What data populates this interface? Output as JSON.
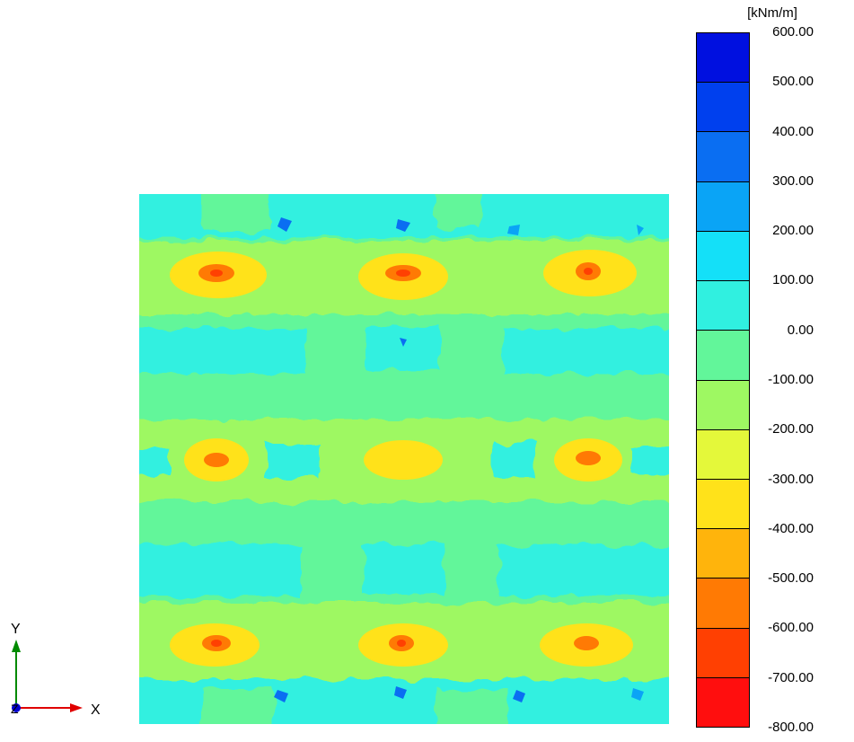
{
  "legend": {
    "unit": "[kNm/m]",
    "labels": [
      "600.00",
      "500.00",
      "400.00",
      "300.00",
      "200.00",
      "100.00",
      "0.00",
      "-100.00",
      "-200.00",
      "-300.00",
      "-400.00",
      "-500.00",
      "-600.00",
      "-700.00",
      "-800.00"
    ],
    "band_colors": [
      "#0010e0",
      "#0040ee",
      "#0a6ef2",
      "#0aa4f6",
      "#14e0f8",
      "#30f0e0",
      "#62f69a",
      "#9ef862",
      "#e4f83a",
      "#ffe21a",
      "#ffb40c",
      "#ff7a04",
      "#ff4002",
      "#ff0e0e"
    ]
  },
  "axes": {
    "x_label": "X",
    "y_label": "Y",
    "z_label": "Z",
    "x_color": "#e00000",
    "y_color": "#008a00",
    "z_color": "#0000d0"
  },
  "plot": {
    "background_color": "#62f69a"
  }
}
